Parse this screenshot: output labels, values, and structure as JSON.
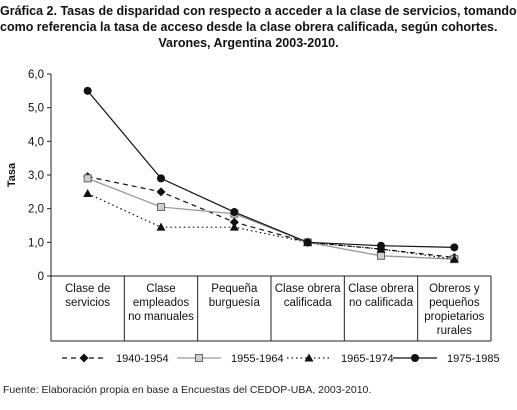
{
  "title_lines": [
    "Gráfica 2. Tasas de disparidad con respecto a acceder a la clase de servicios, tomando",
    "como referencia la tasa de acceso desde la clase obrera calificada, según cohortes.",
    "Varones, Argentina 2003-2010."
  ],
  "source": "Fuente: Elaboración propia en base a Encuestas del CEDOP-UBA, 2003-2010.",
  "chart_data": {
    "type": "line",
    "ylabel": "Tasa",
    "xlabel": "",
    "ylim": [
      0,
      6
    ],
    "yticks": [
      "0",
      "1,0",
      "2,0",
      "3,0",
      "4,0",
      "5,0",
      "6,0"
    ],
    "grid": false,
    "legend_position": "bottom",
    "categories": [
      [
        "Clase de",
        "servicios"
      ],
      [
        "Clase",
        "empleados",
        "no manuales"
      ],
      [
        "Pequeña",
        "burguesía"
      ],
      [
        "Clase obrera",
        "calificada"
      ],
      [
        "Clase obrera",
        "no calificada"
      ],
      [
        "Obreros y",
        "pequeños",
        "propietarios",
        "rurales"
      ]
    ],
    "series": [
      {
        "name": "1940-1954",
        "values": [
          2.95,
          2.5,
          1.6,
          1.0,
          0.8,
          0.55
        ],
        "color": "#111111",
        "dash": "5,4",
        "marker": "diamond"
      },
      {
        "name": "1955-1964",
        "values": [
          2.9,
          2.05,
          1.85,
          1.0,
          0.6,
          0.5
        ],
        "color": "#999999",
        "dash": "",
        "marker": "square"
      },
      {
        "name": "1965-1974",
        "values": [
          2.45,
          1.45,
          1.45,
          1.0,
          0.8,
          0.5
        ],
        "color": "#111111",
        "dash": "1.5,3",
        "marker": "triangle"
      },
      {
        "name": "1975-1985",
        "values": [
          5.5,
          2.9,
          1.9,
          1.0,
          0.9,
          0.85
        ],
        "color": "#111111",
        "dash": "",
        "marker": "circle"
      }
    ]
  }
}
